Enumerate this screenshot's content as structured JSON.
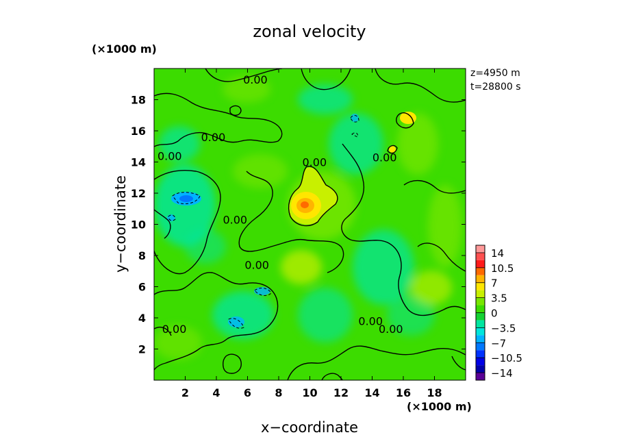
{
  "chart_data": {
    "type": "heatmap",
    "title": "zonal velocity",
    "xlabel": "x−coordinate",
    "ylabel": "y−coordinate",
    "x_unit": "(×1000 m)",
    "y_unit": "(×1000 m)",
    "annotations": [
      "z=4950 m",
      "t=28800 s"
    ],
    "xlim": [
      0,
      20
    ],
    "ylim": [
      0,
      20
    ],
    "x_ticks": [
      2,
      4,
      6,
      8,
      10,
      12,
      14,
      16,
      18
    ],
    "y_ticks": [
      2,
      4,
      6,
      8,
      10,
      12,
      14,
      16,
      18
    ],
    "x_tick_labels": [
      "2",
      "4",
      "6",
      "8",
      "10",
      "12",
      "14",
      "16",
      "18"
    ],
    "y_tick_labels": [
      "2",
      "4",
      "6",
      "8",
      "10",
      "12",
      "14",
      "16",
      "18"
    ],
    "colorbar": {
      "tick_labels": [
        "14",
        "10.5",
        "7",
        "3.5",
        "0",
        "−3.5",
        "−7",
        "−10.5",
        "−14"
      ],
      "levels": [
        14,
        10.5,
        7,
        3.5,
        0,
        -3.5,
        -7,
        -10.5,
        -14
      ],
      "bands": [
        {
          "lower": 14,
          "upper": 15.75,
          "color": "#ff9999"
        },
        {
          "lower": 12.25,
          "upper": 14,
          "color": "#ff5050"
        },
        {
          "lower": 10.5,
          "upper": 12.25,
          "color": "#ff1a1a"
        },
        {
          "lower": 8.75,
          "upper": 10.5,
          "color": "#ff6a00"
        },
        {
          "lower": 7,
          "upper": 8.75,
          "color": "#ffb400"
        },
        {
          "lower": 5.25,
          "upper": 7,
          "color": "#ffe600"
        },
        {
          "lower": 3.5,
          "upper": 5.25,
          "color": "#c8f000"
        },
        {
          "lower": 1.75,
          "upper": 3.5,
          "color": "#78e600"
        },
        {
          "lower": 0,
          "upper": 1.75,
          "color": "#3cdc00"
        },
        {
          "lower": -1.75,
          "upper": 0,
          "color": "#14d232"
        },
        {
          "lower": -3.5,
          "upper": -1.75,
          "color": "#00e6a0"
        },
        {
          "lower": -5.25,
          "upper": -3.5,
          "color": "#00e6dc"
        },
        {
          "lower": -7,
          "upper": -5.25,
          "color": "#00b4ff"
        },
        {
          "lower": -8.75,
          "upper": -7,
          "color": "#0078ff"
        },
        {
          "lower": -10.5,
          "upper": -8.75,
          "color": "#0032ff"
        },
        {
          "lower": -12.25,
          "upper": -10.5,
          "color": "#0000e6"
        },
        {
          "lower": -14,
          "upper": -12.25,
          "color": "#0000aa"
        },
        {
          "lower": -15.75,
          "upper": -14,
          "color": "#5a0096"
        }
      ]
    },
    "contour_labels": [
      {
        "x": 6.5,
        "y": 19.3,
        "text": "0.00"
      },
      {
        "x": 3.8,
        "y": 15.6,
        "text": "0.00"
      },
      {
        "x": 1.0,
        "y": 14.4,
        "text": "0.00"
      },
      {
        "x": 10.3,
        "y": 14.0,
        "text": "0.00"
      },
      {
        "x": 14.8,
        "y": 14.3,
        "text": "0.00"
      },
      {
        "x": 5.2,
        "y": 10.3,
        "text": "0.00"
      },
      {
        "x": 6.6,
        "y": 7.4,
        "text": "0.00"
      },
      {
        "x": 1.3,
        "y": 3.3,
        "text": "0.00"
      },
      {
        "x": 13.9,
        "y": 3.8,
        "text": "0.00"
      },
      {
        "x": 15.2,
        "y": 3.3,
        "text": "0.00"
      }
    ]
  }
}
